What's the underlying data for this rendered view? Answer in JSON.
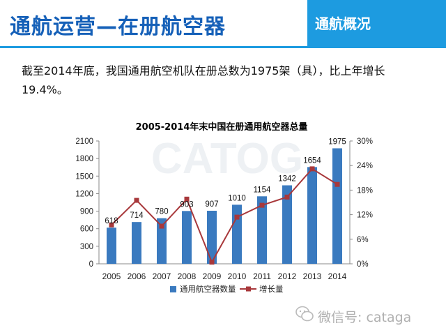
{
  "header": {
    "title": "通航运营—在册航空器",
    "tag": "通航概况"
  },
  "summary_text": "截至2014年底，我国通用航空机队在册总数为1975架（具），比上年增长19.4%。",
  "watermark": {
    "text": "微信号: cataga",
    "background_text": "CATOG"
  },
  "colors": {
    "accent": "#1560b8",
    "tag_bg": "#1d9be0",
    "bar": "#3a7abf",
    "line": "#a8383b"
  },
  "chart_data": {
    "type": "bar",
    "title": "2005-2014年末中国在册通用航空器总量",
    "categories": [
      "2005",
      "2006",
      "2007",
      "2008",
      "2009",
      "2010",
      "2011",
      "2012",
      "2013",
      "2014"
    ],
    "series": [
      {
        "name": "通用航空器数量",
        "type": "bar",
        "axis": "left",
        "values": [
          618,
          714,
          780,
          903,
          907,
          1010,
          1154,
          1342,
          1654,
          1975
        ],
        "data_labels": [
          "618",
          "714",
          "780",
          "903",
          "907",
          "1010",
          "1154",
          "1342",
          "1654",
          "1975"
        ]
      },
      {
        "name": "增长量",
        "type": "line",
        "axis": "right",
        "values": [
          9.5,
          15.5,
          9.2,
          15.8,
          0.4,
          11.4,
          14.3,
          16.3,
          23.2,
          19.4
        ]
      }
    ],
    "y_left": {
      "lim": [
        0,
        2100
      ],
      "ticks": [
        0,
        300,
        600,
        900,
        1200,
        1500,
        1800,
        2100
      ],
      "tick_labels": [
        "0",
        "300",
        "600",
        "900",
        "1200",
        "1500",
        "1800",
        "2100"
      ]
    },
    "y_right": {
      "lim": [
        0,
        30
      ],
      "ticks": [
        0,
        6,
        12,
        18,
        24,
        30
      ],
      "tick_labels": [
        "0%",
        "6%",
        "12%",
        "18%",
        "24%",
        "30%"
      ]
    },
    "legend": {
      "position": "bottom",
      "labels": [
        "通用航空器数量",
        "增长量"
      ]
    },
    "grid": false
  }
}
